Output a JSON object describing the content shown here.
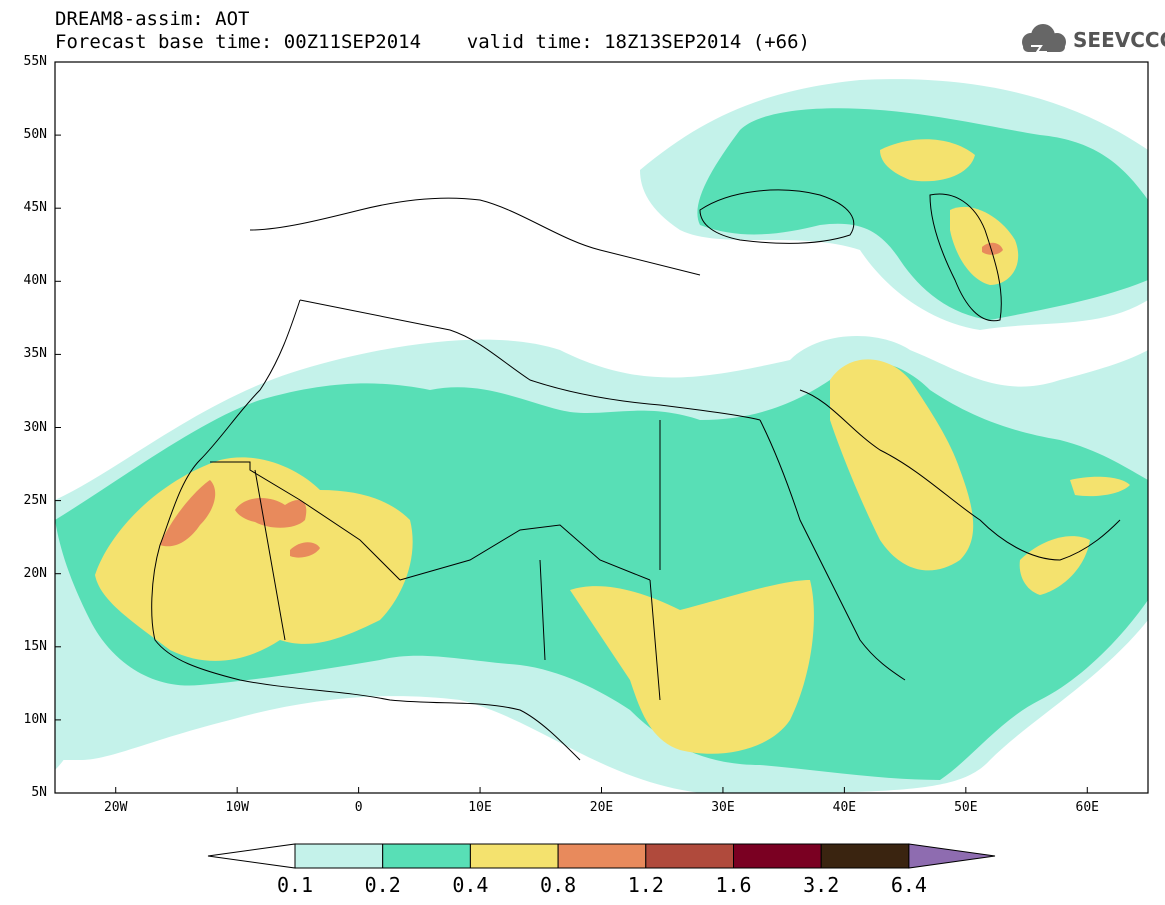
{
  "header": {
    "line1": "DREAM8-assim: AOT",
    "line2": "Forecast base time: 00Z11SEP2014    valid time: 18Z13SEP2014 (+66)"
  },
  "logo": {
    "text": "SEEVCCC",
    "icon": "cloud-icon"
  },
  "map": {
    "lat_labels": [
      "55N",
      "50N",
      "45N",
      "40N",
      "35N",
      "30N",
      "25N",
      "20N",
      "15N",
      "10N",
      "5N"
    ],
    "lon_labels": [
      "20W",
      "10W",
      "0",
      "10E",
      "20E",
      "30E",
      "40E",
      "50E",
      "60E"
    ],
    "lat_range": [
      5,
      55
    ],
    "lon_range": [
      -25,
      65
    ],
    "grid": false
  },
  "colorbar": {
    "labels": [
      "0.1",
      "0.2",
      "0.4",
      "0.8",
      "1.2",
      "1.6",
      "3.2",
      "6.4"
    ],
    "colors": [
      "#ffffff",
      "#c4f2ea",
      "#58dfb6",
      "#f4e26e",
      "#e88a5c",
      "#b04a3c",
      "#7a0022",
      "#3a2410",
      "#8e6cb0"
    ]
  }
}
